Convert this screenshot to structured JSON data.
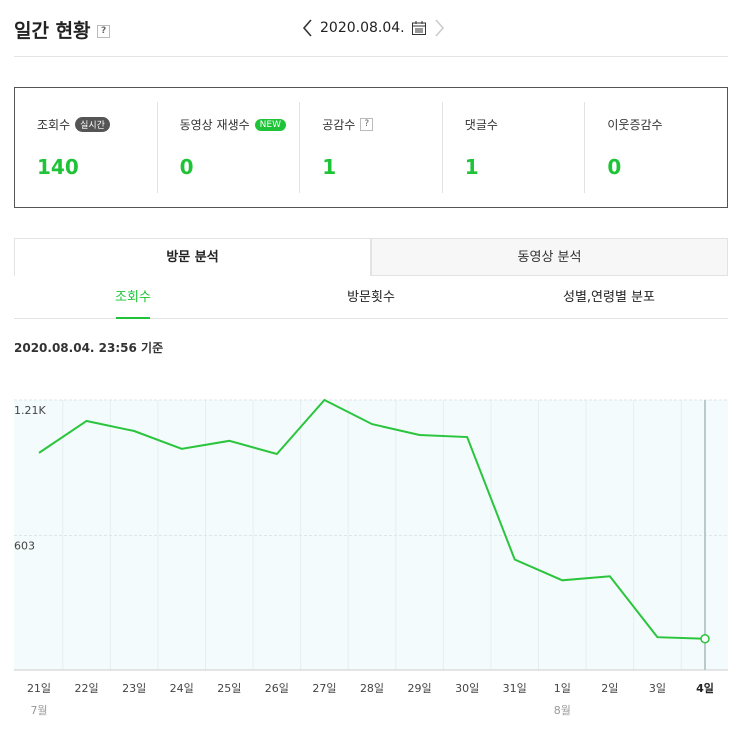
{
  "header": {
    "title": "일간 현황",
    "help": "?",
    "date": "2020.08.04."
  },
  "stats": [
    {
      "label": "조회수",
      "badge": "실시간",
      "value": 140
    },
    {
      "label": "동영상 재생수",
      "badge": "NEW",
      "value": 0
    },
    {
      "label": "공감수",
      "badge": "?",
      "value": 1
    },
    {
      "label": "댓글수",
      "value": 1
    },
    {
      "label": "이웃증감수",
      "value": 0
    }
  ],
  "tabs": [
    "방문 분석",
    "동영상 분석"
  ],
  "subtabs": [
    "조회수",
    "방문횟수",
    "성별,연령별 분포"
  ],
  "timestamp": "2020.08.04. 23:56 기준",
  "chart_data": {
    "type": "line",
    "categories": [
      "21일",
      "22일",
      "23일",
      "24일",
      "25일",
      "26일",
      "27일",
      "28일",
      "29일",
      "30일",
      "31일",
      "1일",
      "2일",
      "3일",
      "4일"
    ],
    "month_labels": [
      "7월",
      null,
      null,
      null,
      null,
      null,
      null,
      null,
      null,
      null,
      null,
      "8월",
      null,
      null,
      null
    ],
    "values": [
      973,
      1116,
      1071,
      991,
      1027,
      968,
      1210,
      1102,
      1053,
      1044,
      495,
      402,
      420,
      147,
      140
    ],
    "color": "#2ac53c",
    "ylim": [
      0,
      1210
    ],
    "yticks": [
      603,
      {
        "value": 1210,
        "label": "1.21K"
      }
    ]
  }
}
